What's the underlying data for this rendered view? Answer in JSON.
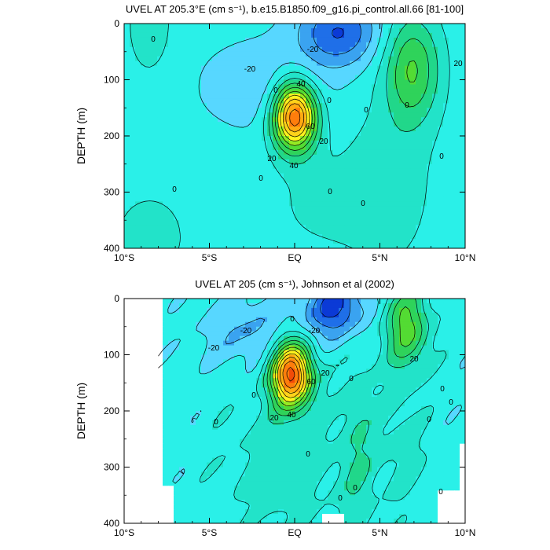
{
  "colors": {
    "level_palette": [
      "#0b3ad6",
      "#1f6fe8",
      "#3aa3f0",
      "#57d7ff",
      "#2af0e8",
      "#22e3c9",
      "#21d78a",
      "#2fd35a",
      "#53db33",
      "#95ea23",
      "#fff21e",
      "#ffd21a",
      "#ffaa12",
      "#ff7d0c",
      "#f24b08",
      "#d81b04"
    ],
    "contour_line": "#000000",
    "missing": "#ffffff"
  },
  "chart_data": [
    {
      "type": "contour",
      "title": "UVEL AT 205.3°E (cm s⁻¹), b.e15.B1850.f09_g16.pi_control.all.66 [81-100]",
      "ylabel": "DEPTH (m)",
      "xlim": [
        -10,
        10
      ],
      "ylim": [
        400,
        0
      ],
      "xticks": [
        "10°S",
        "5°S",
        "EQ",
        "5°N",
        "10°N"
      ],
      "yticks": [
        "0",
        "100",
        "200",
        "300",
        "400"
      ],
      "contour_interval": 10,
      "contour_labels": [
        "0",
        "-20",
        "-20",
        "0",
        "40",
        "0",
        "60",
        "20",
        "20",
        "40",
        "0",
        "0",
        "0",
        "0",
        "0",
        "20",
        "0",
        "0"
      ],
      "features": [
        {
          "name": "Equatorial Undercurrent core",
          "lat": 0.0,
          "depth": 165,
          "peak": 90
        },
        {
          "name": "North Equatorial Countercurrent",
          "lat": 6.8,
          "depth": 80,
          "peak": 30
        },
        {
          "name": "Surface westward flow",
          "lat": 2.5,
          "depth": 20,
          "peak": -35
        }
      ]
    },
    {
      "type": "contour",
      "title": "UVEL AT 205 (cm s⁻¹), Johnson et al (2002)",
      "ylabel": "DEPTH (m)",
      "xlim": [
        -10,
        10
      ],
      "ylim": [
        400,
        0
      ],
      "xticks": [
        "10°S",
        "5°S",
        "EQ",
        "5°N",
        "10°N"
      ],
      "yticks": [
        "0",
        "100",
        "200",
        "300",
        "400"
      ],
      "contour_interval": 10,
      "contour_labels": [
        "-20",
        "-20",
        "0",
        "-20",
        "0",
        "60",
        "20",
        "40",
        "20",
        "0",
        "0",
        "20",
        "0",
        "0",
        "0",
        "0",
        "0",
        "0",
        "0"
      ],
      "features": [
        {
          "name": "Equatorial Undercurrent core",
          "lat": -0.2,
          "depth": 135,
          "peak": 90
        },
        {
          "name": "North Equatorial Countercurrent",
          "lat": 6.7,
          "depth": 50,
          "peak": 35
        },
        {
          "name": "Surface westward flow",
          "lat": 2.3,
          "depth": 20,
          "peak": -40
        }
      ]
    }
  ]
}
